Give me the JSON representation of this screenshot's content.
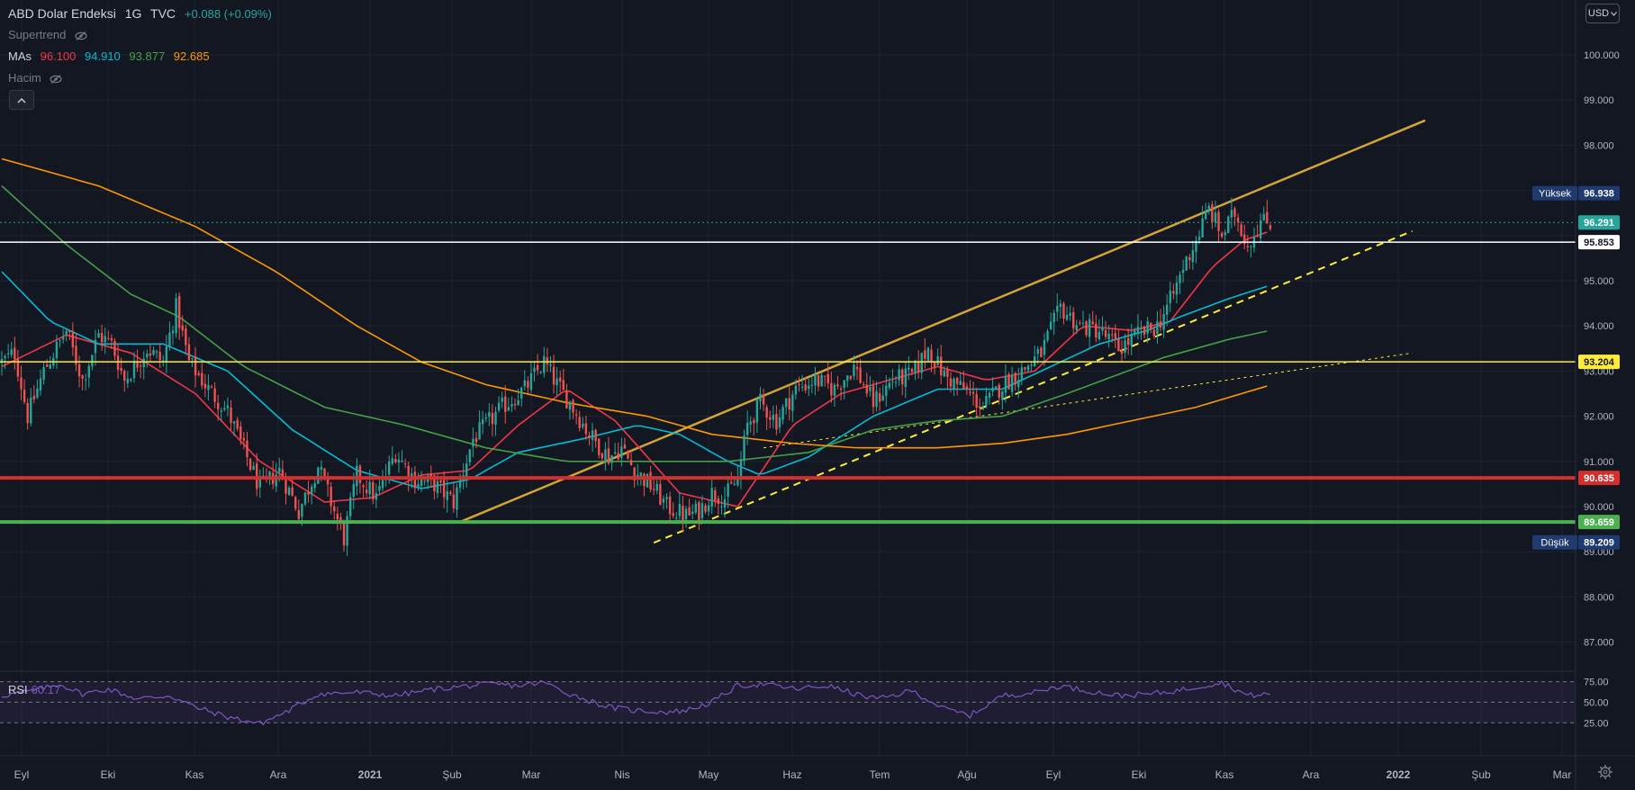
{
  "header": {
    "symbol": "ABD Dolar Endeksi",
    "interval": "1G",
    "exchange": "TVC",
    "change": "+0.088 (+0.09%)",
    "supertrend_label": "Supertrend",
    "mas_label": "MAs",
    "ma_values": [
      "96.100",
      "94.910",
      "93.877",
      "92.685"
    ],
    "volume_label": "Hacim"
  },
  "currency": "USD",
  "rsi": {
    "label": "RSI",
    "value": "60.17",
    "ticks": [
      "75.00",
      "50.00",
      "25.00"
    ]
  },
  "colors": {
    "bg": "#131722",
    "grid": "#1f2330",
    "up": "#26a69a",
    "down": "#ef5350",
    "ma1": "#f23645",
    "ma2": "#00bcd4",
    "ma3": "#43a047",
    "ma4": "#ff9800",
    "gold": "#d4a534",
    "yellow": "#ffeb3b",
    "white": "#ffffff",
    "red": "#d32f2f",
    "green": "#4caf50",
    "rsi": "#7e57c2",
    "accent": "#26a69a"
  },
  "chart_data": {
    "type": "candlestick",
    "title": "ABD Dolar Endeksi · 1G · TVC",
    "ylim": [
      86.6,
      100.4
    ],
    "x_labels": [
      "Eyl",
      "Eki",
      "Kas",
      "Ara",
      "2021",
      "Şub",
      "Mar",
      "Nis",
      "May",
      "Haz",
      "Tem",
      "Ağu",
      "Eyl",
      "Eki",
      "Kas",
      "Ara",
      "2022",
      "Şub",
      "Mar"
    ],
    "y_ticks": [
      "100.000",
      "99.000",
      "98.000",
      "95.000",
      "94.000",
      "93.000",
      "92.000",
      "91.000",
      "90.000",
      "89.000",
      "88.000",
      "87.000"
    ],
    "price_keypoints": [
      [
        0,
        93.2
      ],
      [
        4,
        93.4
      ],
      [
        8,
        92.0
      ],
      [
        13,
        93.0
      ],
      [
        20,
        93.9
      ],
      [
        25,
        92.8
      ],
      [
        30,
        93.8
      ],
      [
        34,
        93.6
      ],
      [
        38,
        92.8
      ],
      [
        45,
        93.5
      ],
      [
        50,
        93.2
      ],
      [
        54,
        94.4
      ],
      [
        58,
        93.2
      ],
      [
        64,
        92.6
      ],
      [
        70,
        92.1
      ],
      [
        80,
        90.4
      ],
      [
        86,
        90.8
      ],
      [
        92,
        89.9
      ],
      [
        98,
        90.9
      ],
      [
        102,
        90.1
      ],
      [
        106,
        89.3
      ],
      [
        110,
        90.7
      ],
      [
        116,
        90.2
      ],
      [
        122,
        91.2
      ],
      [
        128,
        90.6
      ],
      [
        134,
        90.5
      ],
      [
        140,
        90.1
      ],
      [
        146,
        91.5
      ],
      [
        150,
        91.8
      ],
      [
        155,
        92.2
      ],
      [
        162,
        92.6
      ],
      [
        168,
        93.2
      ],
      [
        172,
        92.7
      ],
      [
        176,
        92.3
      ],
      [
        182,
        91.6
      ],
      [
        188,
        91.1
      ],
      [
        192,
        91.3
      ],
      [
        196,
        90.8
      ],
      [
        202,
        90.4
      ],
      [
        206,
        90.0
      ],
      [
        212,
        89.8
      ],
      [
        216,
        89.9
      ],
      [
        220,
        90.3
      ],
      [
        224,
        90.2
      ],
      [
        228,
        90.6
      ],
      [
        231,
        91.8
      ],
      [
        235,
        92.3
      ],
      [
        240,
        91.9
      ],
      [
        246,
        92.6
      ],
      [
        252,
        92.8
      ],
      [
        258,
        92.6
      ],
      [
        264,
        93.1
      ],
      [
        270,
        92.3
      ],
      [
        276,
        92.8
      ],
      [
        282,
        92.9
      ],
      [
        287,
        93.5
      ],
      [
        292,
        92.9
      ],
      [
        298,
        92.6
      ],
      [
        304,
        92.2
      ],
      [
        310,
        92.7
      ],
      [
        316,
        93.0
      ],
      [
        322,
        93.4
      ],
      [
        328,
        94.4
      ],
      [
        334,
        94.0
      ],
      [
        340,
        93.9
      ],
      [
        346,
        93.5
      ],
      [
        352,
        93.8
      ],
      [
        358,
        94.0
      ],
      [
        363,
        94.7
      ],
      [
        366,
        95.3
      ],
      [
        370,
        95.9
      ],
      [
        374,
        96.6
      ],
      [
        378,
        96.0
      ],
      [
        382,
        96.5
      ],
      [
        386,
        95.8
      ],
      [
        390,
        96.3
      ],
      [
        393,
        96.29
      ]
    ],
    "high": {
      "label": "Yüksek",
      "value": "96.938"
    },
    "low": {
      "label": "Düşük",
      "value": "89.209"
    },
    "levels": [
      {
        "value": 96.291,
        "label": "96.291",
        "color": "#26a69a",
        "style": "dotted",
        "text_color": "#ffffff"
      },
      {
        "value": 95.853,
        "label": "95.853",
        "color": "#ffffff",
        "style": "solid",
        "text_color": "#131722"
      },
      {
        "value": 93.204,
        "label": "93.204",
        "color": "#ffeb3b",
        "style": "solid",
        "text_color": "#131722"
      },
      {
        "value": 90.635,
        "label": "90.635",
        "color": "#d32f2f",
        "style": "solid",
        "text_color": "#ffffff"
      },
      {
        "value": 89.659,
        "label": "89.659",
        "color": "#4caf50",
        "style": "solid",
        "text_color": "#ffffff"
      }
    ],
    "trendlines": [
      {
        "name": "rising-channel-upper",
        "from": [
          142,
          89.66
        ],
        "to": [
          441,
          98.55
        ],
        "color": "#d4a534",
        "width": 2.5,
        "dash": ""
      },
      {
        "name": "rising-support-dashed",
        "from": [
          202,
          89.2
        ],
        "to": [
          437,
          96.1
        ],
        "color": "#ffeb3b",
        "width": 2,
        "dash": "8,6"
      },
      {
        "name": "rising-support-dotted",
        "from": [
          236,
          91.3
        ],
        "to": [
          437,
          93.4
        ],
        "color": "#ffeb3b",
        "width": 1,
        "dash": "3,4"
      }
    ],
    "ma": [
      {
        "name": "MA1",
        "color": "#f23645",
        "points": [
          [
            0,
            93.1
          ],
          [
            20,
            93.8
          ],
          [
            40,
            93.4
          ],
          [
            60,
            92.5
          ],
          [
            80,
            91.0
          ],
          [
            100,
            90.1
          ],
          [
            115,
            90.2
          ],
          [
            130,
            90.7
          ],
          [
            145,
            90.8
          ],
          [
            160,
            91.8
          ],
          [
            175,
            92.6
          ],
          [
            190,
            91.9
          ],
          [
            210,
            90.3
          ],
          [
            228,
            90.0
          ],
          [
            245,
            91.8
          ],
          [
            260,
            92.5
          ],
          [
            275,
            92.8
          ],
          [
            290,
            93.1
          ],
          [
            305,
            92.8
          ],
          [
            320,
            93.0
          ],
          [
            335,
            94.0
          ],
          [
            350,
            93.9
          ],
          [
            362,
            94.1
          ],
          [
            375,
            95.3
          ],
          [
            385,
            95.9
          ],
          [
            393,
            96.1
          ]
        ]
      },
      {
        "name": "MA2",
        "color": "#00bcd4",
        "points": [
          [
            0,
            95.2
          ],
          [
            15,
            94.1
          ],
          [
            30,
            93.6
          ],
          [
            50,
            93.6
          ],
          [
            70,
            93.0
          ],
          [
            90,
            91.7
          ],
          [
            110,
            90.8
          ],
          [
            130,
            90.4
          ],
          [
            145,
            90.6
          ],
          [
            160,
            91.2
          ],
          [
            180,
            91.5
          ],
          [
            197,
            91.8
          ],
          [
            210,
            91.6
          ],
          [
            225,
            91.0
          ],
          [
            235,
            90.7
          ],
          [
            250,
            91.1
          ],
          [
            270,
            92.0
          ],
          [
            290,
            92.6
          ],
          [
            310,
            92.6
          ],
          [
            325,
            93.1
          ],
          [
            340,
            93.6
          ],
          [
            355,
            93.9
          ],
          [
            365,
            94.2
          ],
          [
            380,
            94.6
          ],
          [
            393,
            94.9
          ]
        ]
      },
      {
        "name": "MA3",
        "color": "#43a047",
        "points": [
          [
            0,
            97.1
          ],
          [
            20,
            95.8
          ],
          [
            40,
            94.7
          ],
          [
            55,
            94.2
          ],
          [
            75,
            93.1
          ],
          [
            100,
            92.2
          ],
          [
            125,
            91.8
          ],
          [
            150,
            91.3
          ],
          [
            175,
            91.0
          ],
          [
            200,
            91.0
          ],
          [
            225,
            91.0
          ],
          [
            250,
            91.2
          ],
          [
            270,
            91.7
          ],
          [
            290,
            91.9
          ],
          [
            310,
            92.0
          ],
          [
            330,
            92.5
          ],
          [
            345,
            92.9
          ],
          [
            360,
            93.3
          ],
          [
            380,
            93.7
          ],
          [
            393,
            93.9
          ]
        ]
      },
      {
        "name": "MA4",
        "color": "#ff9800",
        "points": [
          [
            0,
            97.7
          ],
          [
            30,
            97.1
          ],
          [
            60,
            96.2
          ],
          [
            85,
            95.2
          ],
          [
            110,
            94.0
          ],
          [
            130,
            93.2
          ],
          [
            150,
            92.7
          ],
          [
            175,
            92.3
          ],
          [
            200,
            92.0
          ],
          [
            220,
            91.6
          ],
          [
            245,
            91.4
          ],
          [
            265,
            91.3
          ],
          [
            290,
            91.3
          ],
          [
            310,
            91.4
          ],
          [
            330,
            91.6
          ],
          [
            350,
            91.9
          ],
          [
            370,
            92.2
          ],
          [
            393,
            92.69
          ]
        ]
      }
    ],
    "rsi_keypoints": [
      [
        0,
        58
      ],
      [
        10,
        64
      ],
      [
        18,
        72
      ],
      [
        25,
        60
      ],
      [
        33,
        66
      ],
      [
        42,
        54
      ],
      [
        52,
        58
      ],
      [
        60,
        44
      ],
      [
        70,
        32
      ],
      [
        80,
        24
      ],
      [
        88,
        38
      ],
      [
        98,
        60
      ],
      [
        110,
        62
      ],
      [
        122,
        58
      ],
      [
        134,
        66
      ],
      [
        145,
        70
      ],
      [
        152,
        72
      ],
      [
        160,
        70
      ],
      [
        168,
        74
      ],
      [
        176,
        60
      ],
      [
        188,
        44
      ],
      [
        196,
        40
      ],
      [
        206,
        38
      ],
      [
        212,
        40
      ],
      [
        220,
        50
      ],
      [
        228,
        70
      ],
      [
        236,
        72
      ],
      [
        246,
        66
      ],
      [
        256,
        70
      ],
      [
        266,
        58
      ],
      [
        272,
        54
      ],
      [
        282,
        64
      ],
      [
        292,
        42
      ],
      [
        300,
        34
      ],
      [
        310,
        58
      ],
      [
        320,
        62
      ],
      [
        328,
        70
      ],
      [
        336,
        64
      ],
      [
        346,
        58
      ],
      [
        356,
        60
      ],
      [
        364,
        64
      ],
      [
        372,
        70
      ],
      [
        378,
        74
      ],
      [
        386,
        58
      ],
      [
        393,
        60
      ]
    ]
  }
}
